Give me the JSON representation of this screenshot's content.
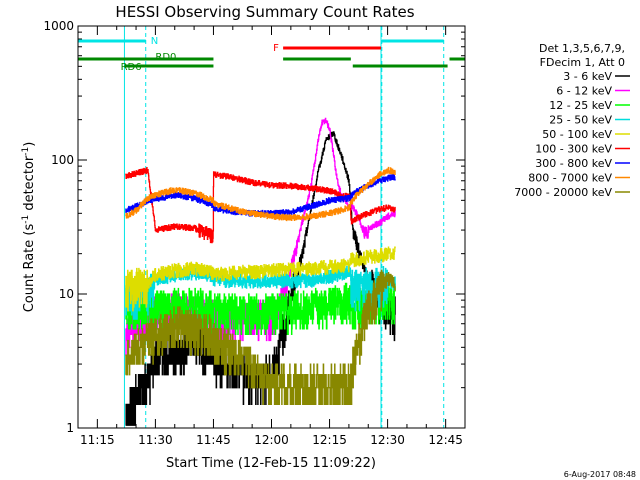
{
  "chart_data": {
    "type": "line",
    "title": "HESSI Observing Summary Count Rates",
    "xlabel": "Start Time (12-Feb-15 11:09:22)",
    "ylabel_main": "Count Rate (s",
    "ylabel_sup1": "-1",
    "ylabel_mid": " detector",
    "ylabel_sup2": "-1",
    "ylabel_end": ")",
    "y_scale": "log",
    "ylim": [
      1,
      1000
    ],
    "xlim_minutes": [
      670,
      770
    ],
    "y_ticks": [
      {
        "value": 1,
        "label": "1"
      },
      {
        "value": 10,
        "label": "10"
      },
      {
        "value": 100,
        "label": "100"
      },
      {
        "value": 1000,
        "label": "1000"
      }
    ],
    "x_ticks": [
      {
        "value": 675,
        "label": "11:15"
      },
      {
        "value": 690,
        "label": "11:30"
      },
      {
        "value": 705,
        "label": "11:45"
      },
      {
        "value": 720,
        "label": "12:00"
      },
      {
        "value": 735,
        "label": "12:15"
      },
      {
        "value": 750,
        "label": "12:30"
      },
      {
        "value": 765,
        "label": "12:45"
      }
    ],
    "legend_position": "right, outside plot",
    "legend_header": [
      "Det 1,3,5,6,7,9,",
      "FDecim 1, Att 0"
    ],
    "timestamp": "6-Aug-2017 08:48",
    "flags": {
      "night": {
        "label": "N",
        "color": "#00e5e5",
        "segments": [
          [
            670,
            687.5
          ],
          [
            748.5,
            764.5
          ]
        ],
        "boundaries": [
          687.5,
          748.5,
          764.5
        ]
      },
      "flare": {
        "label": "F",
        "color": "#ff0000",
        "segments": [
          [
            723,
            748.3
          ]
        ]
      },
      "rd0": {
        "label": "RD0",
        "color": "#008800",
        "segments": [
          [
            670,
            705
          ],
          [
            723,
            740.5
          ],
          [
            741,
            765.5
          ],
          [
            766,
            770
          ]
        ]
      },
      "rd6": {
        "label": "RD6",
        "color": "#008800"
      }
    },
    "data_gaps": [
      [
        670,
        682
      ]
    ],
    "series": [
      {
        "name": "3 - 6 keV",
        "color": "#000000",
        "x": [
          682.3,
          685,
          688,
          690,
          695,
          700,
          704.9,
          705,
          710,
          715,
          718,
          720,
          722,
          724,
          726,
          728,
          730,
          732,
          734,
          736,
          737,
          738,
          740,
          741,
          744,
          746,
          748,
          750,
          752
        ],
        "values": [
          1.2,
          1.8,
          2.3,
          3.5,
          3.8,
          4.2,
          3.8,
          3.2,
          2.8,
          2.4,
          2.4,
          2.6,
          4,
          7,
          12,
          20,
          40,
          80,
          140,
          160,
          130,
          110,
          70,
          30,
          15,
          11,
          9,
          8,
          7
        ]
      },
      {
        "name": "6 - 12 keV",
        "color": "#ff00ff",
        "x": [
          682.3,
          685,
          688,
          690,
          695,
          700,
          704.9,
          705,
          710,
          715,
          718,
          720,
          722,
          724,
          726,
          728,
          730,
          731,
          732,
          733,
          734,
          735,
          736,
          737,
          738,
          740,
          741,
          742,
          744,
          746,
          748,
          750,
          752
        ],
        "values": [
          5,
          6,
          6.5,
          7,
          7.5,
          7.2,
          6.8,
          6.5,
          6.3,
          6.5,
          6.8,
          7,
          7.5,
          12,
          20,
          35,
          60,
          90,
          140,
          190,
          200,
          170,
          110,
          70,
          55,
          45,
          44,
          40,
          28,
          32,
          34,
          38,
          40
        ]
      },
      {
        "name": "12 - 25 keV",
        "color": "#00ff00",
        "x": [
          682.3,
          688,
          690,
          700,
          704.9,
          705,
          715,
          725,
          735,
          740.4,
          740.5,
          745,
          750,
          752
        ],
        "values": [
          8,
          8.5,
          8,
          8.3,
          8,
          7.5,
          7.3,
          7.6,
          8.5,
          9,
          7.8,
          8.5,
          9,
          9
        ]
      },
      {
        "name": "25 - 50 keV",
        "color": "#00dddd",
        "x": [
          682.3,
          688,
          690,
          695,
          700,
          704.9,
          705,
          710,
          720,
          730,
          735,
          740.4,
          740.5,
          745,
          750,
          752
        ],
        "values": [
          9,
          9.5,
          13,
          14,
          14.5,
          14,
          12.5,
          12.6,
          12.5,
          12.7,
          13.5,
          15,
          11,
          11.5,
          12,
          12
        ]
      },
      {
        "name": "50 - 100 keV",
        "color": "#dddd00",
        "x": [
          682.3,
          688,
          690,
          695,
          700,
          704.9,
          705,
          710,
          720,
          730,
          735,
          740.4,
          740.5,
          745,
          750,
          752
        ],
        "values": [
          11,
          12,
          14,
          15,
          15.5,
          14.5,
          14,
          14.5,
          15,
          15.5,
          16,
          16.5,
          18,
          19,
          20,
          20
        ]
      },
      {
        "name": "100 - 300 keV",
        "color": "#ff0000",
        "x": [
          682.3,
          688,
          690,
          695,
          700,
          704.9,
          705,
          710,
          715,
          720,
          725,
          730,
          735,
          740,
          740.4,
          740.5,
          745,
          748,
          750,
          752
        ],
        "values": [
          76,
          84,
          30,
          32,
          31,
          27,
          78,
          74,
          68,
          65,
          64,
          62,
          59,
          53,
          50,
          35,
          40,
          43,
          44,
          42
        ]
      },
      {
        "name": "300 - 800 keV",
        "color": "#0000ff",
        "x": [
          682.3,
          685,
          688,
          690,
          695,
          700,
          704.9,
          705,
          710,
          715,
          720,
          725,
          730,
          735,
          740,
          740.4,
          740.5,
          742,
          745,
          748,
          750,
          752
        ],
        "values": [
          42,
          45,
          50,
          51,
          55,
          52,
          46,
          44,
          41,
          40,
          40,
          41,
          45,
          50,
          52,
          53,
          54,
          58,
          65,
          70,
          73,
          75
        ]
      },
      {
        "name": "800 - 7000 keV",
        "color": "#ff8800",
        "x": [
          682.3,
          685,
          688,
          690,
          695,
          700,
          704.9,
          705,
          710,
          715,
          720,
          725,
          730,
          735,
          740,
          740.4,
          740.5,
          742,
          745,
          748,
          750,
          752
        ],
        "values": [
          38,
          42,
          52,
          55,
          60,
          57,
          50,
          48,
          43,
          40,
          38,
          37,
          38,
          40,
          44,
          46,
          48,
          55,
          66,
          78,
          84,
          82
        ]
      },
      {
        "name": "7000 - 20000 keV",
        "color": "#888800",
        "x": [
          682.3,
          685,
          688,
          690,
          695,
          700,
          704.9,
          705,
          710,
          715,
          718,
          720,
          725,
          730,
          735,
          740,
          740.4,
          740.5,
          742,
          745,
          748,
          750,
          752
        ],
        "values": [
          3.5,
          4,
          4.5,
          5,
          6,
          5.5,
          5,
          4.5,
          3.8,
          3,
          2.3,
          2.2,
          2.1,
          2.1,
          2.1,
          2.2,
          2.3,
          2.4,
          4,
          8,
          11,
          13,
          12
        ]
      }
    ]
  }
}
